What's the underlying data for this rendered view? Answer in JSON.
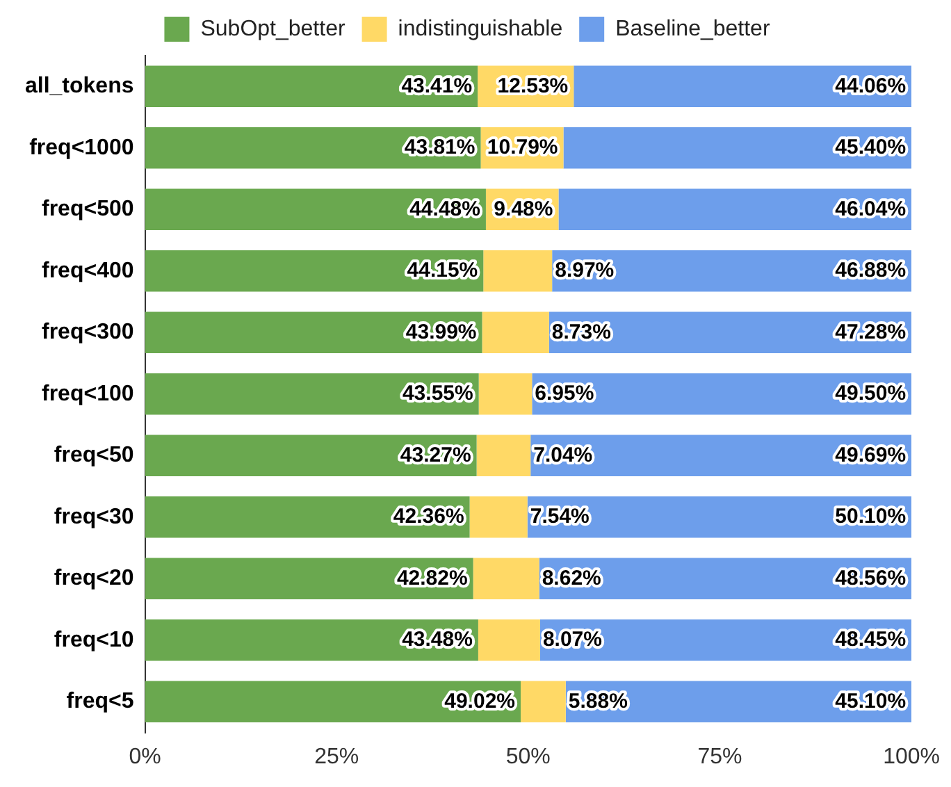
{
  "chart_data": {
    "type": "bar",
    "orientation": "horizontal",
    "stacked": true,
    "categories": [
      "all_tokens",
      "freq<1000",
      "freq<500",
      "freq<400",
      "freq<300",
      "freq<100",
      "freq<50",
      "freq<30",
      "freq<20",
      "freq<10",
      "freq<5"
    ],
    "series": [
      {
        "name": "SubOpt_better",
        "color": "#6aa84f",
        "values": [
          43.41,
          43.81,
          44.48,
          44.15,
          43.99,
          43.55,
          43.27,
          42.36,
          42.82,
          43.48,
          49.02
        ],
        "value_labels": [
          "43.41%",
          "43.81%",
          "44.48%",
          "44.15%",
          "43.99%",
          "43.55%",
          "43.27%",
          "42.36%",
          "42.82%",
          "43.48%",
          "49.02%"
        ]
      },
      {
        "name": "indistinguishable",
        "color": "#ffd966",
        "values": [
          12.53,
          10.79,
          9.48,
          8.97,
          8.73,
          6.95,
          7.04,
          7.54,
          8.62,
          8.07,
          5.88
        ],
        "value_labels": [
          "12.53%",
          "10.79%",
          "9.48%",
          "8.97%",
          "8.73%",
          "6.95%",
          "7.04%",
          "7.54%",
          "8.62%",
          "8.07%",
          "5.88%"
        ]
      },
      {
        "name": "Baseline_better",
        "color": "#6d9eeb",
        "values": [
          44.06,
          45.4,
          46.04,
          46.88,
          47.28,
          49.5,
          49.69,
          50.1,
          48.56,
          48.45,
          45.1
        ],
        "value_labels": [
          "44.06%",
          "45.40%",
          "46.04%",
          "46.88%",
          "47.28%",
          "49.50%",
          "49.69%",
          "50.10%",
          "48.56%",
          "48.45%",
          "45.10%"
        ]
      }
    ],
    "xlim": [
      0,
      100
    ],
    "xticks": [
      {
        "value": 0,
        "label": "0%"
      },
      {
        "value": 25,
        "label": "25%"
      },
      {
        "value": 50,
        "label": "50%"
      },
      {
        "value": 75,
        "label": "75%"
      },
      {
        "value": 100,
        "label": "100%"
      }
    ],
    "grid": false,
    "legend": "top"
  }
}
